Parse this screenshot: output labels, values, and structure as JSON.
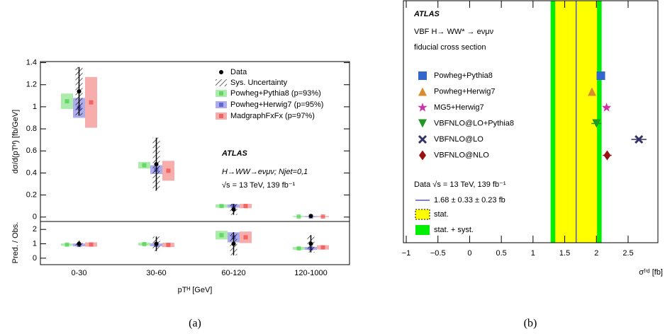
{
  "chart_data": [
    {
      "type": "errorbar",
      "ylabel": "dσ/d(pTᴴ) [fb/GeV]",
      "xlabel": "pTᴴ [GeV]",
      "caption": "(a)",
      "annotations": [
        "ATLAS",
        "H→WW→eνμν; Njet=0,1",
        "√s = 13 TeV, 139 fb⁻¹"
      ],
      "categories": [
        "0-30",
        "30-60",
        "60-120",
        "120-1000"
      ],
      "ylim": [
        -0.04,
        1.41
      ],
      "yticks": [
        0,
        0.2,
        0.4,
        0.6,
        0.8,
        1,
        1.2,
        1.4
      ],
      "data": {
        "name": "Data",
        "color": "#000000",
        "values": [
          1.14,
          0.48,
          0.07,
          0.01
        ],
        "errors": [
          0.22,
          0.24,
          0.05,
          0.01
        ]
      },
      "sys_label": "Sys. Uncertainty",
      "series": [
        {
          "name": "Powheg+Pythia8 (p=93%)",
          "color": "#33cc33",
          "values": [
            1.05,
            0.47,
            0.1,
            0.005
          ],
          "errors": [
            0.07,
            0.03,
            0.015,
            0.005
          ]
        },
        {
          "name": "Powheg+Herwig7 (p=95%)",
          "color": "#3333cc",
          "values": [
            0.99,
            0.43,
            0.1,
            0.005
          ],
          "errors": [
            0.09,
            0.04,
            0.015,
            0.005
          ]
        },
        {
          "name": "MadgraphFxFx (p=97%)",
          "color": "#ee3333",
          "values": [
            1.04,
            0.42,
            0.1,
            0.005
          ],
          "errors": [
            0.23,
            0.09,
            0.02,
            0.005
          ]
        }
      ],
      "ratio": {
        "ylabel": "Pred. / Obs.",
        "ylim": [
          -0.45,
          2.55
        ],
        "yticks": [
          0,
          1,
          2
        ],
        "data": {
          "values": [
            1,
            1,
            1,
            1
          ],
          "errors": [
            0.2,
            0.5,
            0.8,
            0.6
          ]
        },
        "series": [
          {
            "values": [
              0.94,
              0.98,
              1.6,
              0.68
            ],
            "errors": [
              0.08,
              0.1,
              0.3,
              0.1
            ]
          },
          {
            "values": [
              0.92,
              0.93,
              1.45,
              0.68
            ],
            "errors": [
              0.1,
              0.1,
              0.35,
              0.1
            ]
          },
          {
            "values": [
              0.95,
              0.92,
              1.45,
              0.75
            ],
            "errors": [
              0.15,
              0.15,
              0.4,
              0.15
            ]
          }
        ]
      }
    },
    {
      "type": "summary",
      "xlabel": "σᶠⁱᵈ [fb]",
      "caption": "(b)",
      "annotations": [
        "ATLAS",
        "VBF H→ WW* → eνμν",
        "fiducial cross section",
        "Data √s = 13 TeV, 139 fb⁻¹"
      ],
      "xlim": [
        -1.045,
        2.97
      ],
      "xticks": [
        {
          "value": -1,
          "label": "−1"
        },
        {
          "value": -0.5,
          "label": "−0.5"
        },
        0,
        0.5,
        1,
        1.5,
        2,
        2.5
      ],
      "data": {
        "name": "1.68 ± 0.33 ± 0.23 fb",
        "value": 1.68,
        "stat": 0.33,
        "syst": 0.23,
        "color": "#5555bb"
      },
      "bands": [
        {
          "name": "stat.",
          "color": "#ffff00"
        },
        {
          "name": "stat. + syst.",
          "color": "#00ee00"
        }
      ],
      "series": [
        {
          "name": "Powheg+Pythia8",
          "color": "#3366cc",
          "marker": "square",
          "values": [
            2.07
          ],
          "errors": [
            0.02
          ]
        },
        {
          "name": "Powheg+Herwig7",
          "color": "#d98c2b",
          "marker": "triangle",
          "values": [
            1.93
          ],
          "errors": [
            0.03
          ]
        },
        {
          "name": "MG5+Herwig7",
          "color": "#cc33aa",
          "marker": "star",
          "values": [
            2.16
          ],
          "errors": [
            0.05
          ]
        },
        {
          "name": "VBFNLO@LO+Pythia8",
          "color": "#1f9922",
          "marker": "triangle-down",
          "values": [
            2.0
          ],
          "errors": [
            0.08
          ]
        },
        {
          "name": "VBFNLO@LO",
          "color": "#333366",
          "marker": "x",
          "values": [
            2.67
          ],
          "errors": [
            0.12
          ]
        },
        {
          "name": "VBFNLO@NLO",
          "color": "#991111",
          "marker": "diamond",
          "values": [
            2.17
          ],
          "errors": [
            0.07
          ]
        }
      ]
    }
  ]
}
